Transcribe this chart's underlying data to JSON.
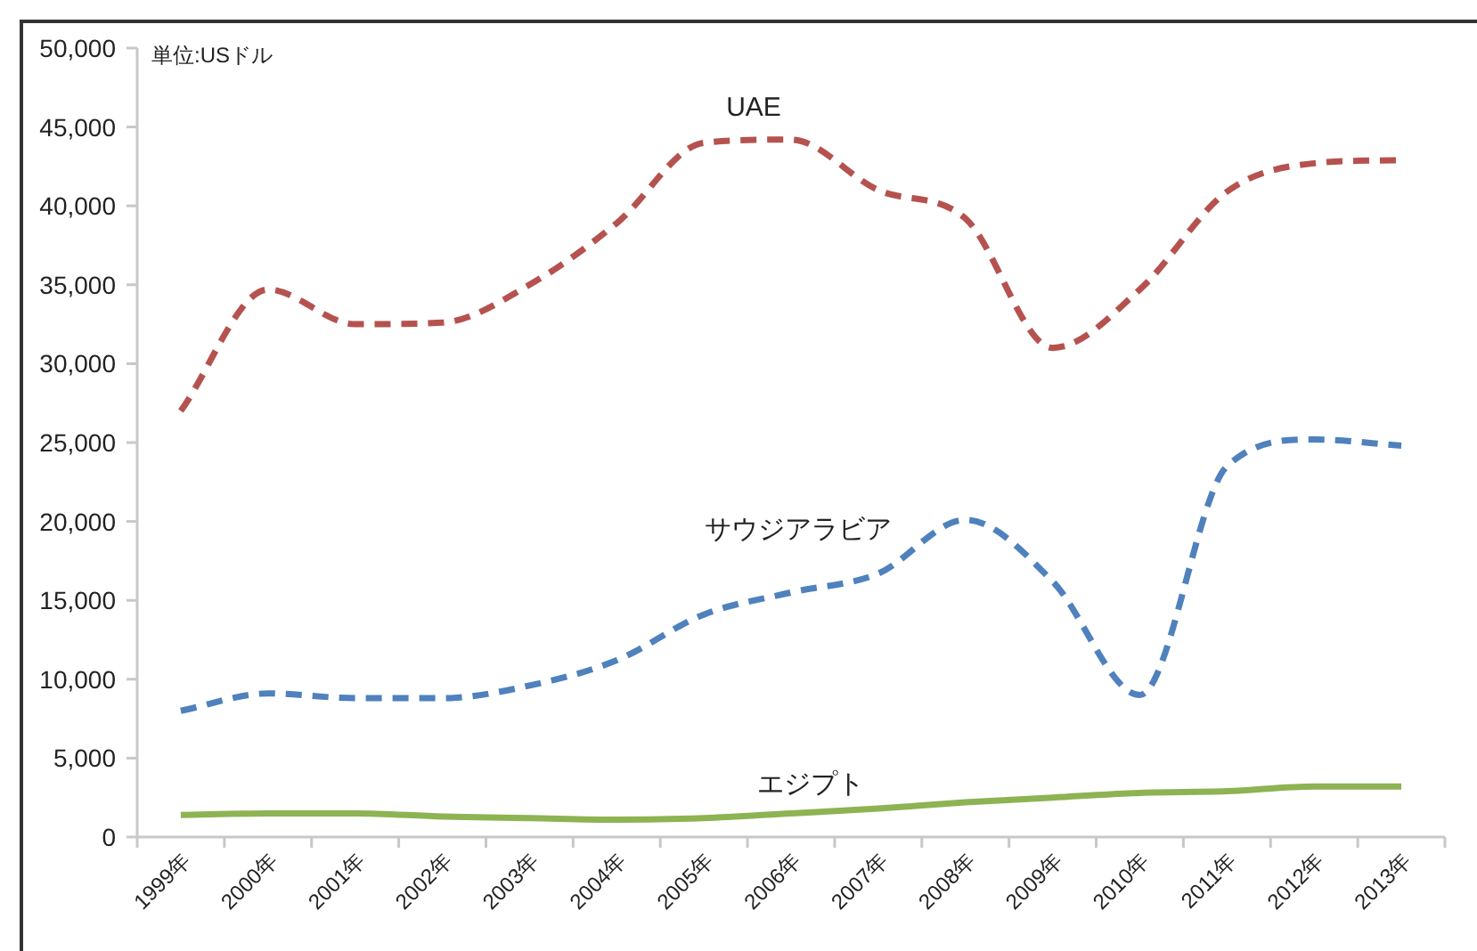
{
  "chart_data": {
    "type": "line",
    "categories": [
      "1999年",
      "2000年",
      "2001年",
      "2002年",
      "2003年",
      "2004年",
      "2005年",
      "2006年",
      "2007年",
      "2008年",
      "2009年",
      "2010年",
      "2011年",
      "2012年",
      "2013年"
    ],
    "series": [
      {
        "name": "UAE",
        "color": "#b5524f",
        "line_style": "dashed",
        "values": [
          27000,
          34700,
          32500,
          32600,
          35000,
          38900,
          44000,
          44200,
          41000,
          39200,
          31000,
          34700,
          40900,
          42700,
          42900
        ]
      },
      {
        "name": "サウジアラビア",
        "color": "#4f81bd",
        "line_style": "dashed",
        "values": [
          8000,
          9100,
          8800,
          8800,
          9600,
          11200,
          14100,
          15500,
          16700,
          20100,
          16200,
          9000,
          23500,
          25200,
          24800
        ]
      },
      {
        "name": "エジプト",
        "color": "#8db352",
        "line_style": "solid",
        "values": [
          1400,
          1500,
          1500,
          1300,
          1200,
          1100,
          1200,
          1500,
          1800,
          2200,
          2500,
          2800,
          2900,
          3200,
          3200
        ]
      }
    ],
    "ylim": [
      0,
      50000
    ],
    "yticks": [
      {
        "value": 0,
        "label": "0"
      },
      {
        "value": 5000,
        "label": "5,000"
      },
      {
        "value": 10000,
        "label": "10,000"
      },
      {
        "value": 15000,
        "label": "15,000"
      },
      {
        "value": 20000,
        "label": "20,000"
      },
      {
        "value": 25000,
        "label": "25,000"
      },
      {
        "value": 30000,
        "label": "30,000"
      },
      {
        "value": 35000,
        "label": "35,000"
      },
      {
        "value": 40000,
        "label": "40,000"
      },
      {
        "value": 45000,
        "label": "45,000"
      },
      {
        "value": 50000,
        "label": "50,000"
      }
    ],
    "annotations": [
      "単位:USドル"
    ],
    "marker": "none"
  }
}
